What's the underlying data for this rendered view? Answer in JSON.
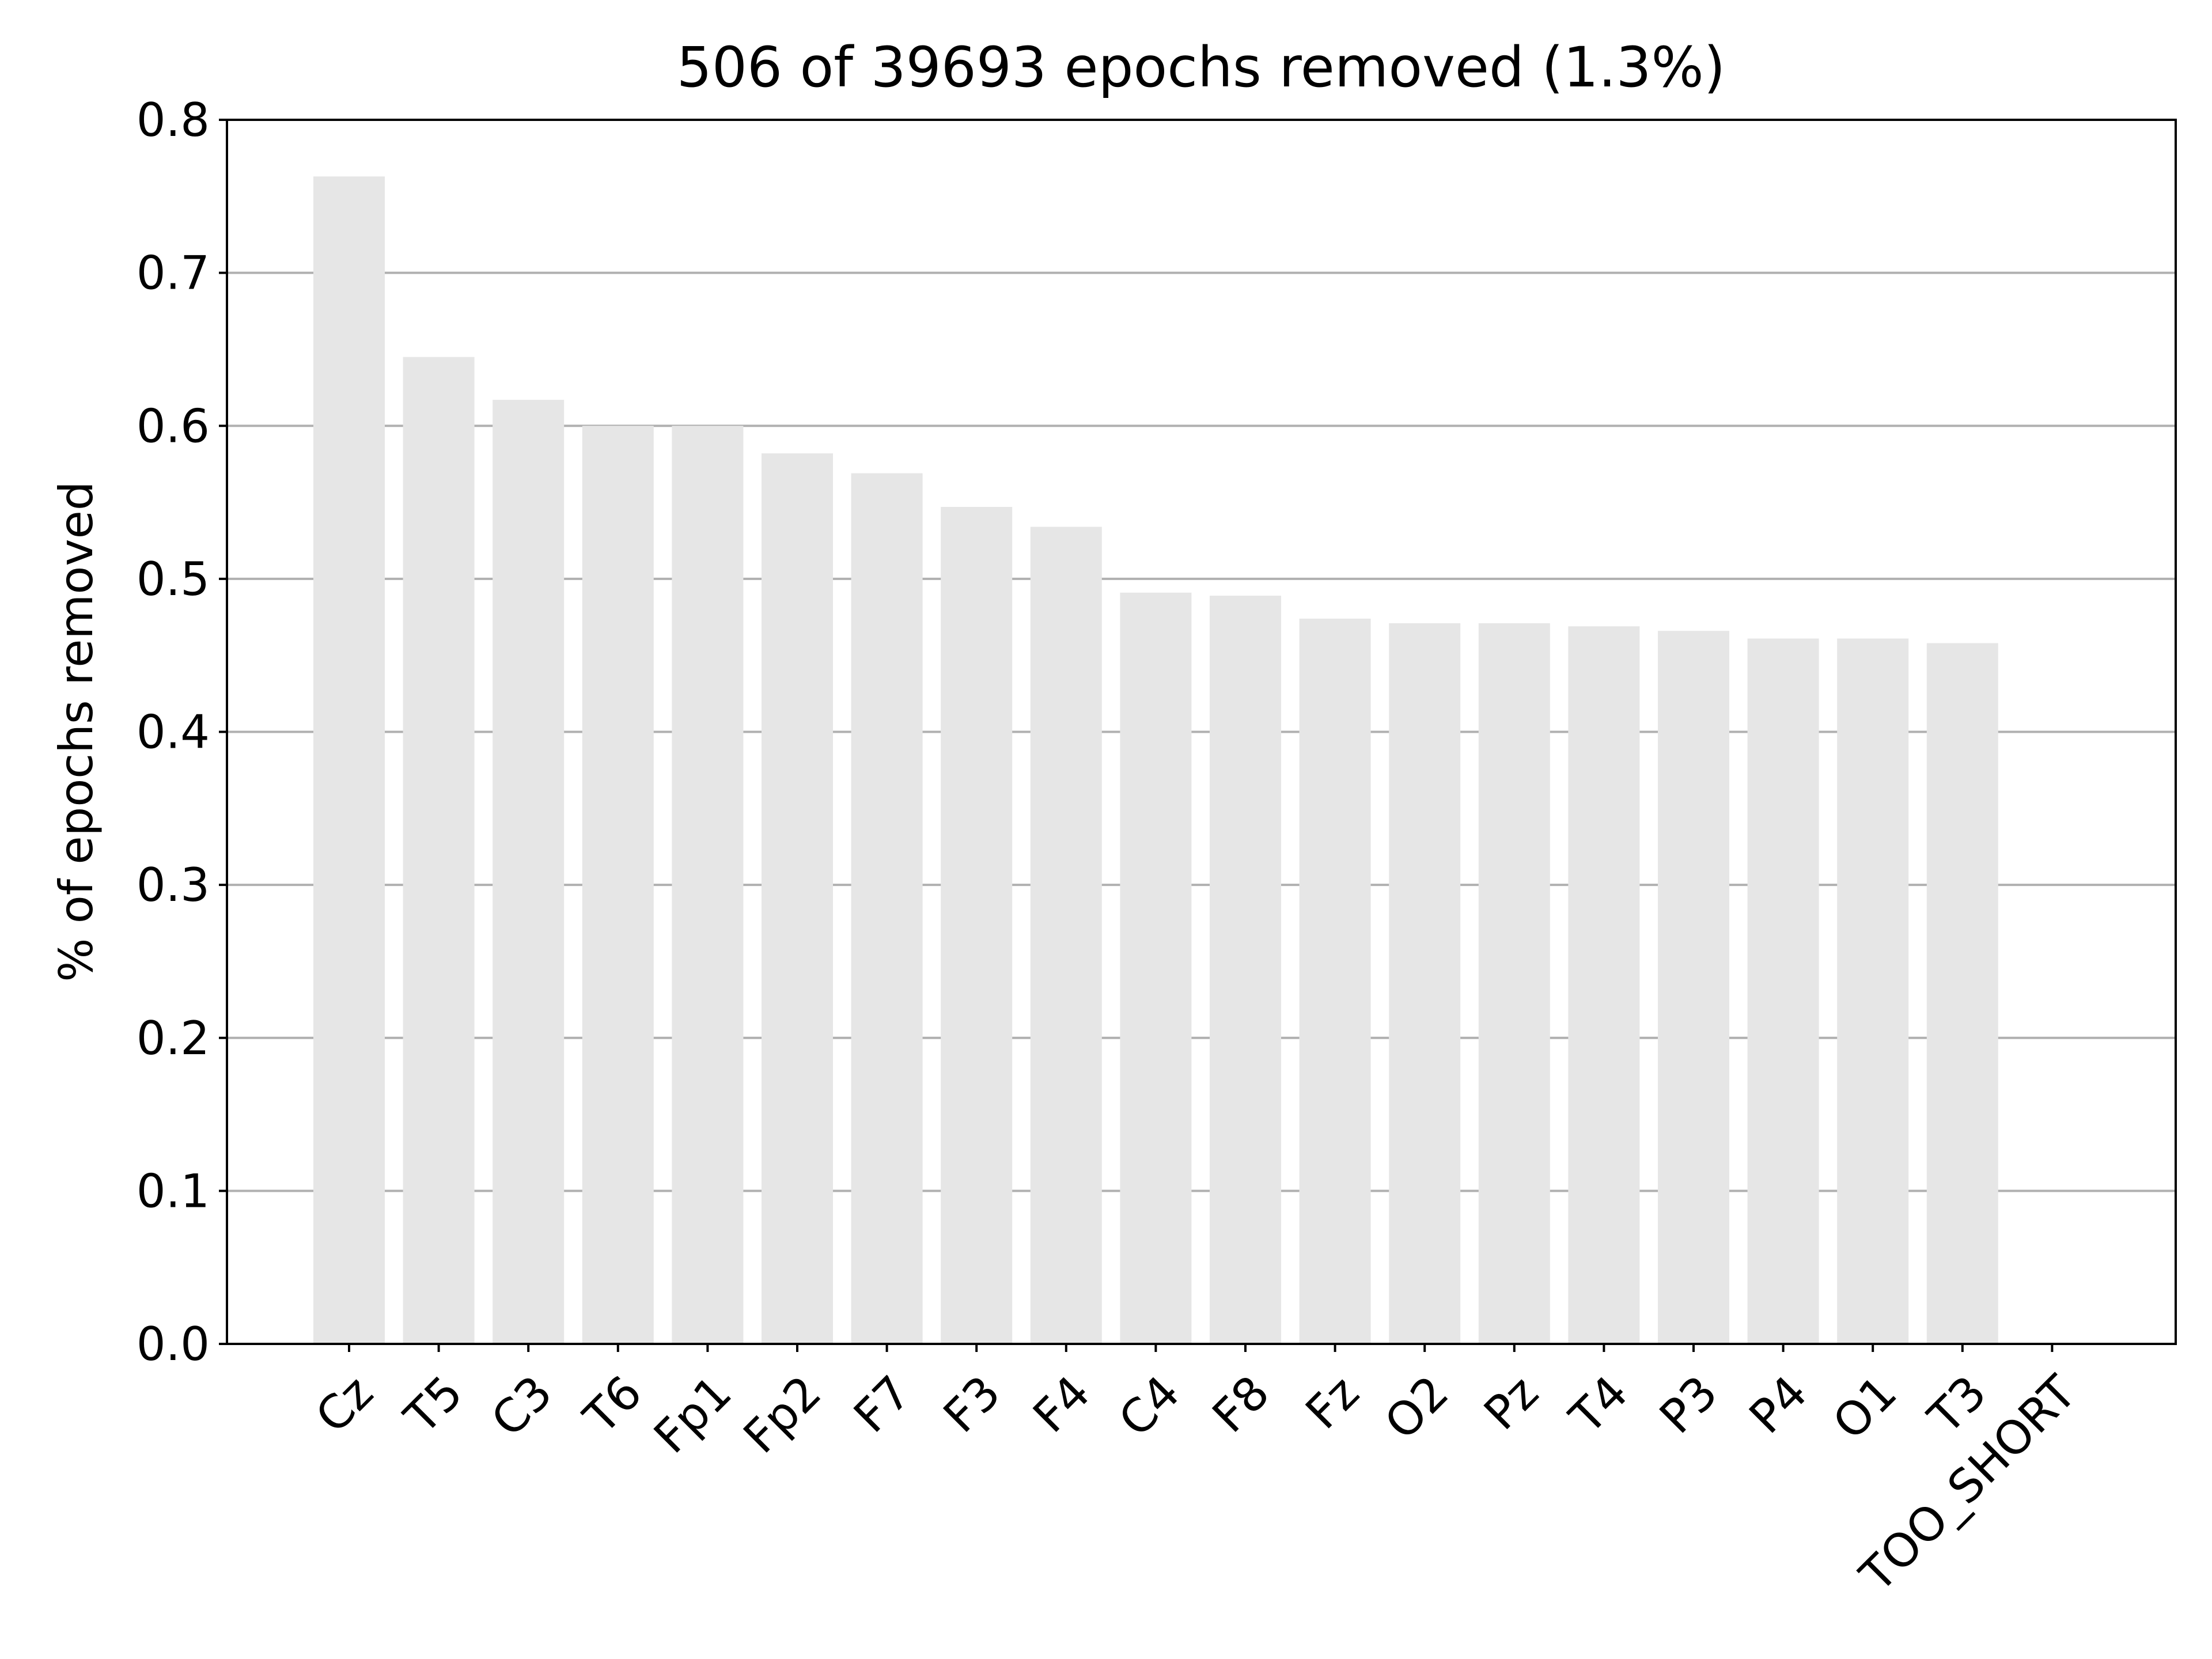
{
  "chart_data": {
    "type": "bar",
    "title": "506 of 39693 epochs removed (1.3%)",
    "xlabel": "",
    "ylabel": "% of epochs removed",
    "categories": [
      "Cz",
      "T5",
      "C3",
      "T6",
      "Fp1",
      "Fp2",
      "F7",
      "F3",
      "F4",
      "C4",
      "F8",
      "Fz",
      "O2",
      "Pz",
      "T4",
      "P3",
      "P4",
      "O1",
      "T3",
      "TOO_SHORT"
    ],
    "values": [
      0.763,
      0.645,
      0.617,
      0.6,
      0.6,
      0.582,
      0.569,
      0.547,
      0.534,
      0.491,
      0.489,
      0.474,
      0.471,
      0.471,
      0.469,
      0.466,
      0.461,
      0.461,
      0.458,
      0.0
    ],
    "ylim": [
      0,
      0.8
    ],
    "yticks": [
      "0.0",
      "0.1",
      "0.2",
      "0.3",
      "0.4",
      "0.5",
      "0.6",
      "0.7",
      "0.8"
    ],
    "grid": "horizontal",
    "bar_color": "#e6e6e6",
    "grid_color": "#b0b0b0",
    "axis_color": "#000000"
  }
}
